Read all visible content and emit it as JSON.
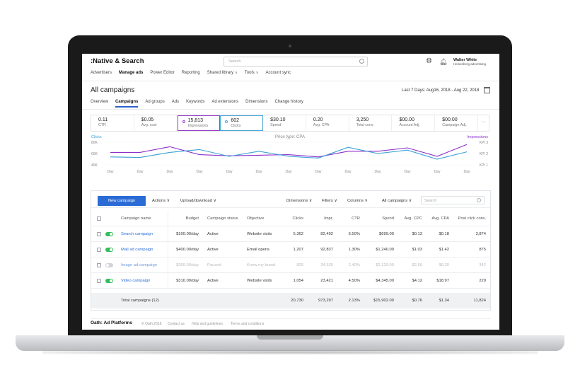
{
  "brand": {
    "logo_colon": ":",
    "logo_text": "Native & Search"
  },
  "topbar": {
    "search_placeholder": "Search",
    "user_name": "Walter White",
    "user_org": "Heisenberg advertising",
    "settings_icon": "gear-icon",
    "notifications_icon": "bell-icon"
  },
  "mainnav": {
    "items": [
      "Advertisers",
      "Manage ads",
      "Power Editor",
      "Reporting",
      "Shared library",
      "Tools",
      "Account sync"
    ],
    "active": "Manage ads"
  },
  "page": {
    "title": "All campaigns",
    "date_range": "Last 7 Days: Aug16, 2018 - Aug 22, 2018"
  },
  "subnav": {
    "items": [
      "Overview",
      "Campaigns",
      "Ad groups",
      "Ads",
      "Keywords",
      "Ad extensions",
      "Dimensions",
      "Change history"
    ],
    "active": "Campaigns"
  },
  "kpis": [
    {
      "value": "0.11",
      "label": "CTR"
    },
    {
      "value": "$0.05",
      "label": "Avg. cost"
    },
    {
      "value": "15,813",
      "label": "Impressions"
    },
    {
      "value": "602",
      "label": "Clicks"
    },
    {
      "value": "$30.10",
      "label": "Spend"
    },
    {
      "value": "0.20",
      "label": "Avg. CPA"
    },
    {
      "value": "3,250",
      "label": "Total conv."
    },
    {
      "value": "$00.00",
      "label": "Account Adj."
    },
    {
      "value": "$00.00",
      "label": "Campaign Adj."
    }
  ],
  "kpi_more": "···",
  "chart_data": {
    "type": "line",
    "title": "Price type: CPA",
    "left_axis_title": "Clicks",
    "right_axis_title": "Impressions",
    "left_ticks": [
      "80K",
      "60K",
      "40K"
    ],
    "right_ticks": [
      "KPI 3",
      "KPI 2",
      "KPI 1"
    ],
    "categories": [
      "Day",
      "Day",
      "Day",
      "Day",
      "Day",
      "Day",
      "Day",
      "Day",
      "Day",
      "Day",
      "Day",
      "Day",
      "Day"
    ],
    "ylim": [
      40,
      80
    ],
    "series": [
      {
        "name": "Impressions",
        "color": "#8b2fc9",
        "values": [
          62,
          62,
          72,
          58,
          56,
          57,
          58,
          54,
          64,
          64,
          70,
          55,
          76
        ]
      },
      {
        "name": "Clicks",
        "color": "#3aa0d8",
        "values": [
          54,
          53,
          62,
          67,
          55,
          64,
          55,
          52,
          71,
          60,
          66,
          50,
          63
        ]
      }
    ]
  },
  "toolbar": {
    "new_campaign": "New campaign",
    "actions": "Actions",
    "upload_download": "Upload/download",
    "dimensions": "Dimensions",
    "filters": "Filters",
    "columns": "Columns",
    "all_campaigns": "All campaigns",
    "search_placeholder": "Search"
  },
  "table": {
    "headers": [
      "Campaign name",
      "Budget",
      "Campaign status",
      "Objective",
      "Clicks",
      "Impr.",
      "CTR",
      "Spend",
      "Avg. CPC",
      "Avg. CPA",
      "Post click conv."
    ],
    "rows": [
      {
        "name": "Search campaign",
        "budget": "$100.00/day",
        "status": "Active",
        "objective": "Website visits",
        "clicks": "5,362",
        "impr": "82,492",
        "ctr": "6.50%",
        "spend": "$699.00",
        "cpc": "$0.13",
        "cpa": "$0.18",
        "conv": "3,874",
        "enabled": true
      },
      {
        "name": "Mail ad campaign",
        "budget": "$400.00/day",
        "status": "Active",
        "objective": "Email opens",
        "clicks": "1,207",
        "impr": "92,837",
        "ctr": "1.30%",
        "spend": "$1,240.00",
        "cpc": "$1.03",
        "cpa": "$1.42",
        "conv": "875",
        "enabled": true
      },
      {
        "name": "Image ad campaign",
        "budget": "$300.00/day",
        "status": "Paused",
        "objective": "Know my brand",
        "clicks": "829",
        "impr": "34,535",
        "ctr": "2.40%",
        "spend": "$2,129.00",
        "cpc": "$2.56",
        "cpa": "$6.20",
        "conv": "342",
        "enabled": false
      },
      {
        "name": "Video campaign",
        "budget": "$310.00/day",
        "status": "Active",
        "objective": "Website visits",
        "clicks": "1,054",
        "impr": "23,421",
        "ctr": "4.50%",
        "spend": "$4,345.00",
        "cpc": "$4.12",
        "cpa": "$18.97",
        "conv": "229",
        "enabled": true
      }
    ],
    "total": {
      "label": "Total campaigns (12)",
      "clicks": "20,730",
      "impr": "973,297",
      "ctr": "2.13%",
      "spend": "$15,902.00",
      "cpc": "$0.76",
      "cpa": "$1.34",
      "conv": "11,824"
    }
  },
  "footer": {
    "logo": "Oath: Ad Platforms",
    "copyright": "© Oath 2018",
    "links": [
      "Contact us",
      "Help and guidelines",
      "Terms and conditions"
    ]
  }
}
